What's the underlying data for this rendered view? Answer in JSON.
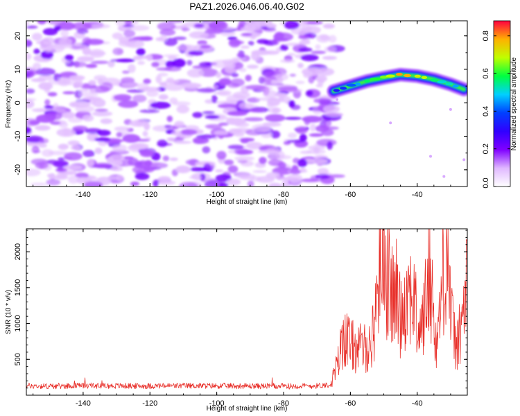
{
  "chart_data": [
    {
      "type": "heatmap",
      "title": "PAZ1.2026.046.06.40.G02",
      "xlabel": "Height of straight line (km)",
      "ylabel": "Frequency (Hz)",
      "xlim": [
        -157,
        -25
      ],
      "ylim": [
        -25,
        24.5
      ],
      "x_ticks": [
        "-140",
        "-120",
        "-100",
        "-80",
        "-60",
        "-40"
      ],
      "y_ticks": [
        "20",
        "10",
        "0",
        "-10",
        "-20"
      ],
      "colorbar": {
        "label": "Normalized spectral amplitude",
        "range": [
          0,
          0.88
        ],
        "ticks": [
          "0.0",
          "0.2",
          "0.4",
          "0.6",
          "0.8"
        ],
        "stops": [
          "#ffffff",
          "#e0b8ff",
          "#8000ff",
          "#3000ff",
          "#0040ff",
          "#00d0ff",
          "#00ff40",
          "#c0ff00",
          "#ffb000",
          "#ff0040"
        ]
      },
      "features": {
        "noise_region_x": [
          -157,
          -65
        ],
        "signal_ridge": [
          [
            -65,
            3.5
          ],
          [
            -60,
            5
          ],
          [
            -55,
            6.5
          ],
          [
            -50,
            7.5
          ],
          [
            -45,
            8.4
          ],
          [
            -40,
            8.0
          ],
          [
            -35,
            7.0
          ],
          [
            -30,
            5.5
          ],
          [
            -26,
            4
          ]
        ]
      }
    },
    {
      "type": "line",
      "xlabel": "Height of straight line (km)",
      "ylabel": "SNR (10 * v/v)",
      "xlim": [
        -157,
        -25
      ],
      "ylim": [
        0,
        2320
      ],
      "x_ticks": [
        "-140",
        "-120",
        "-100",
        "-80",
        "-60",
        "-40"
      ],
      "y_ticks": [
        "500",
        "1000",
        "1500",
        "2000"
      ],
      "series": [
        {
          "name": "SNR",
          "color": "#e8302a",
          "x": [
            -157,
            -150,
            -140,
            -130,
            -120,
            -110,
            -100,
            -90,
            -80,
            -70,
            -66,
            -64,
            -62,
            -60,
            -58,
            -56,
            -54,
            -53,
            -52,
            -51,
            -50,
            -49,
            -48,
            -47,
            -46,
            -45,
            -44,
            -43,
            -42,
            -41,
            -40,
            -39,
            -38,
            -37,
            -36,
            -35,
            -34,
            -33,
            -32,
            -31,
            -30,
            -29,
            -28,
            -27,
            -26,
            -25
          ],
          "values": [
            130,
            125,
            135,
            130,
            128,
            132,
            130,
            128,
            125,
            130,
            150,
            400,
            850,
            700,
            650,
            650,
            700,
            900,
            1500,
            1800,
            2250,
            1600,
            1500,
            1300,
            1450,
            1100,
            1300,
            1400,
            1500,
            1300,
            1000,
            900,
            1100,
            1500,
            1700,
            1000,
            700,
            1300,
            1800,
            2100,
            1200,
            800,
            700,
            900,
            1200,
            1700
          ]
        }
      ]
    }
  ]
}
